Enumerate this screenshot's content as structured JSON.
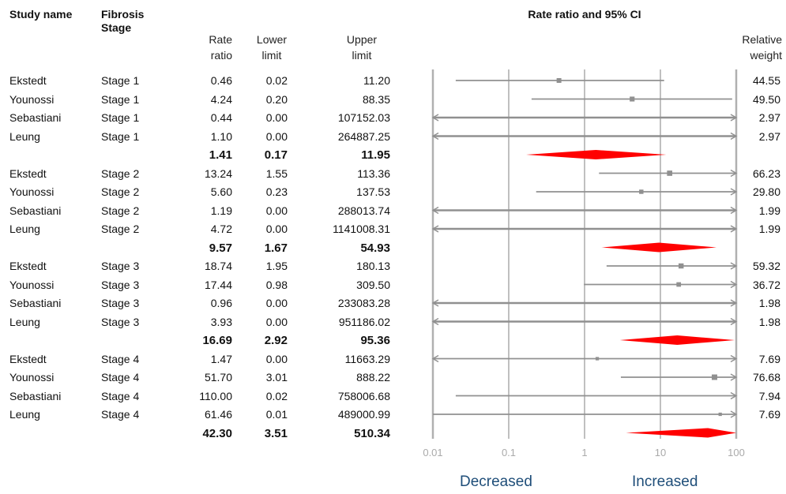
{
  "headers": {
    "study": "Study name",
    "stage": "Fibrosis\nStage",
    "rate_ratio": "Rate\nratio",
    "lower": "Lower\nlimit",
    "upper": "Upper\nlimit",
    "plot_title": "Rate ratio and 95%  CI",
    "weight": "Relative\nweight"
  },
  "axis": {
    "scale": "log10",
    "range": [
      0.01,
      100
    ],
    "ticks": [
      "0.01",
      "0.1",
      "1",
      "10",
      "100"
    ],
    "left_label": "Decreased",
    "right_label": "Increased"
  },
  "colors": {
    "ci_line": "#909090",
    "summary_diamond": "#ff0000",
    "grid": "#b0b0b0",
    "direction_text": "#1f4e79"
  },
  "chart_data": {
    "type": "forest",
    "x_scale": "log",
    "xlim": [
      0.01,
      100
    ],
    "rows": [
      {
        "study": "Ekstedt",
        "stage": "Stage 1",
        "rr": "0.46",
        "lower": "0.02",
        "upper": "11.20",
        "weight": "44.55",
        "summary": false
      },
      {
        "study": "Younossi",
        "stage": "Stage 1",
        "rr": "4.24",
        "lower": "0.20",
        "upper": "88.35",
        "weight": "49.50",
        "summary": false
      },
      {
        "study": "Sebastiani",
        "stage": "Stage 1",
        "rr": "0.44",
        "lower": "0.00",
        "upper": "107152.03",
        "weight": "2.97",
        "summary": false
      },
      {
        "study": "Leung",
        "stage": "Stage 1",
        "rr": "1.10",
        "lower": "0.00",
        "upper": "264887.25",
        "weight": "2.97",
        "summary": false
      },
      {
        "study": "",
        "stage": "",
        "rr": "1.41",
        "lower": "0.17",
        "upper": "11.95",
        "weight": "",
        "summary": true
      },
      {
        "study": "Ekstedt",
        "stage": "Stage 2",
        "rr": "13.24",
        "lower": "1.55",
        "upper": "113.36",
        "weight": "66.23",
        "summary": false
      },
      {
        "study": "Younossi",
        "stage": "Stage 2",
        "rr": "5.60",
        "lower": "0.23",
        "upper": "137.53",
        "weight": "29.80",
        "summary": false
      },
      {
        "study": "Sebastiani",
        "stage": "Stage 2",
        "rr": "1.19",
        "lower": "0.00",
        "upper": "288013.74",
        "weight": "1.99",
        "summary": false
      },
      {
        "study": "Leung",
        "stage": "Stage 2",
        "rr": "4.72",
        "lower": "0.00",
        "upper": "1141008.31",
        "weight": "1.99",
        "summary": false
      },
      {
        "study": "",
        "stage": "",
        "rr": "9.57",
        "lower": "1.67",
        "upper": "54.93",
        "weight": "",
        "summary": true
      },
      {
        "study": "Ekstedt",
        "stage": "Stage 3",
        "rr": "18.74",
        "lower": "1.95",
        "upper": "180.13",
        "weight": "59.32",
        "summary": false
      },
      {
        "study": "Younossi",
        "stage": "Stage 3",
        "rr": "17.44",
        "lower": "0.98",
        "upper": "309.50",
        "weight": "36.72",
        "summary": false
      },
      {
        "study": "Sebastiani",
        "stage": "Stage 3",
        "rr": "0.96",
        "lower": "0.00",
        "upper": "233083.28",
        "weight": "1.98",
        "summary": false
      },
      {
        "study": "Leung",
        "stage": "Stage 3",
        "rr": "3.93",
        "lower": "0.00",
        "upper": "951186.02",
        "weight": "1.98",
        "summary": false
      },
      {
        "study": "",
        "stage": "",
        "rr": "16.69",
        "lower": "2.92",
        "upper": "95.36",
        "weight": "",
        "summary": true
      },
      {
        "study": "Ekstedt",
        "stage": "Stage 4",
        "rr": "1.47",
        "lower": "0.00",
        "upper": "11663.29",
        "weight": "7.69",
        "summary": false
      },
      {
        "study": "Younossi",
        "stage": "Stage 4",
        "rr": "51.70",
        "lower": "3.01",
        "upper": "888.22",
        "weight": "76.68",
        "summary": false
      },
      {
        "study": "Sebastiani",
        "stage": "Stage 4",
        "rr": "110.00",
        "lower": "0.02",
        "upper": "758006.68",
        "weight": "7.94",
        "summary": false
      },
      {
        "study": "Leung",
        "stage": "Stage 4",
        "rr": "61.46",
        "lower": "0.01",
        "upper": "489000.99",
        "weight": "7.69",
        "summary": false
      },
      {
        "study": "",
        "stage": "",
        "rr": "42.30",
        "lower": "3.51",
        "upper": "510.34",
        "weight": "",
        "summary": true
      }
    ]
  }
}
